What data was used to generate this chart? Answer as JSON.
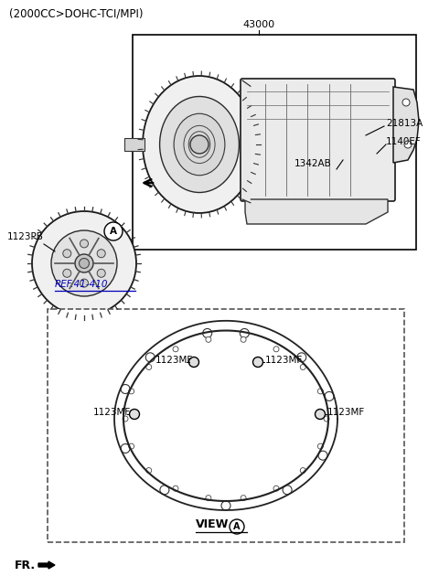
{
  "title": "(2000CC>DOHC-TCI/MPI)",
  "bg_color": "#ffffff",
  "text_color": "#000000",
  "part_43000": "43000",
  "part_21813A": "21813A",
  "part_1342AB": "1342AB",
  "part_1140EF": "1140EF",
  "part_1123PB": "1123PB",
  "part_ref": "REF.41-410",
  "part_1123MF": "1123MF",
  "view_label": "VIEW",
  "view_circle_label": "A",
  "fr_label": "FR."
}
